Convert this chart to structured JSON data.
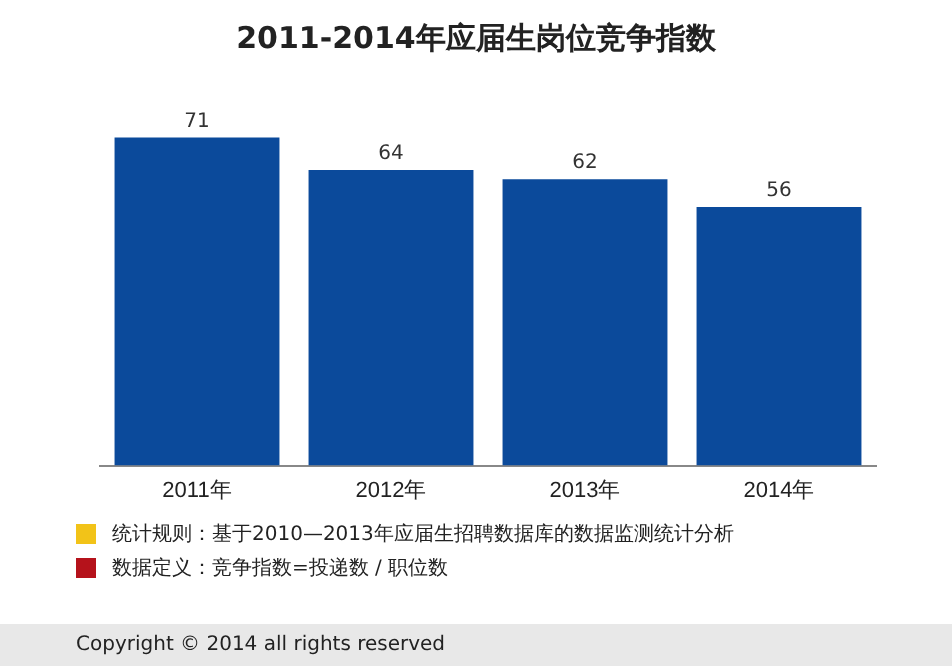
{
  "chart_data": {
    "type": "bar",
    "title": "2011-2014年应届生岗位竞争指数",
    "categories": [
      "2011年",
      "2012年",
      "2013年",
      "2014年"
    ],
    "values": [
      71,
      64,
      62,
      56
    ],
    "color": "#0b4a9b",
    "data_labels": true,
    "grid": false,
    "legend": false,
    "annotations": [
      "统计规则：基于2010—2013年应届生招聘数据库的数据监测统计分析",
      "数据定义：竞争指数=投递数 / 职位数",
      "Copyright © 2014 all rights reserved"
    ]
  }
}
